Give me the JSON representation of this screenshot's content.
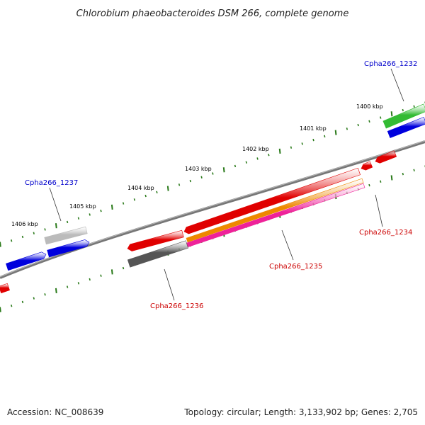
{
  "title": "Chlorobium phaeobacteroides DSM 266, complete genome",
  "footer": {
    "accession": "Accession: NC_008639",
    "summary": "Topology: circular; Length: 3,133,902 bp; Genes: 2,705"
  },
  "ticks": [
    "1400 kbp",
    "1401 kbp",
    "1402 kbp",
    "1403 kbp",
    "1404 kbp",
    "1405 kbp",
    "1406 kbp"
  ],
  "gene_labels": [
    {
      "id": "Cpha266_1232",
      "color": "#0000cc"
    },
    {
      "id": "Cpha266_1234",
      "color": "#cc0000"
    },
    {
      "id": "Cpha266_1235",
      "color": "#cc0000"
    },
    {
      "id": "Cpha266_1236",
      "color": "#cc0000"
    },
    {
      "id": "Cpha266_1237",
      "color": "#0000cc"
    }
  ],
  "colors": {
    "backbone": "#777777",
    "tick": "#2a7a1a",
    "red": "#e00000",
    "blue": "#0000dd",
    "green": "#33bb33",
    "gray": "#bbbbbb",
    "darkgray": "#555555",
    "orange": "#ee8800",
    "magenta": "#ee2299"
  }
}
